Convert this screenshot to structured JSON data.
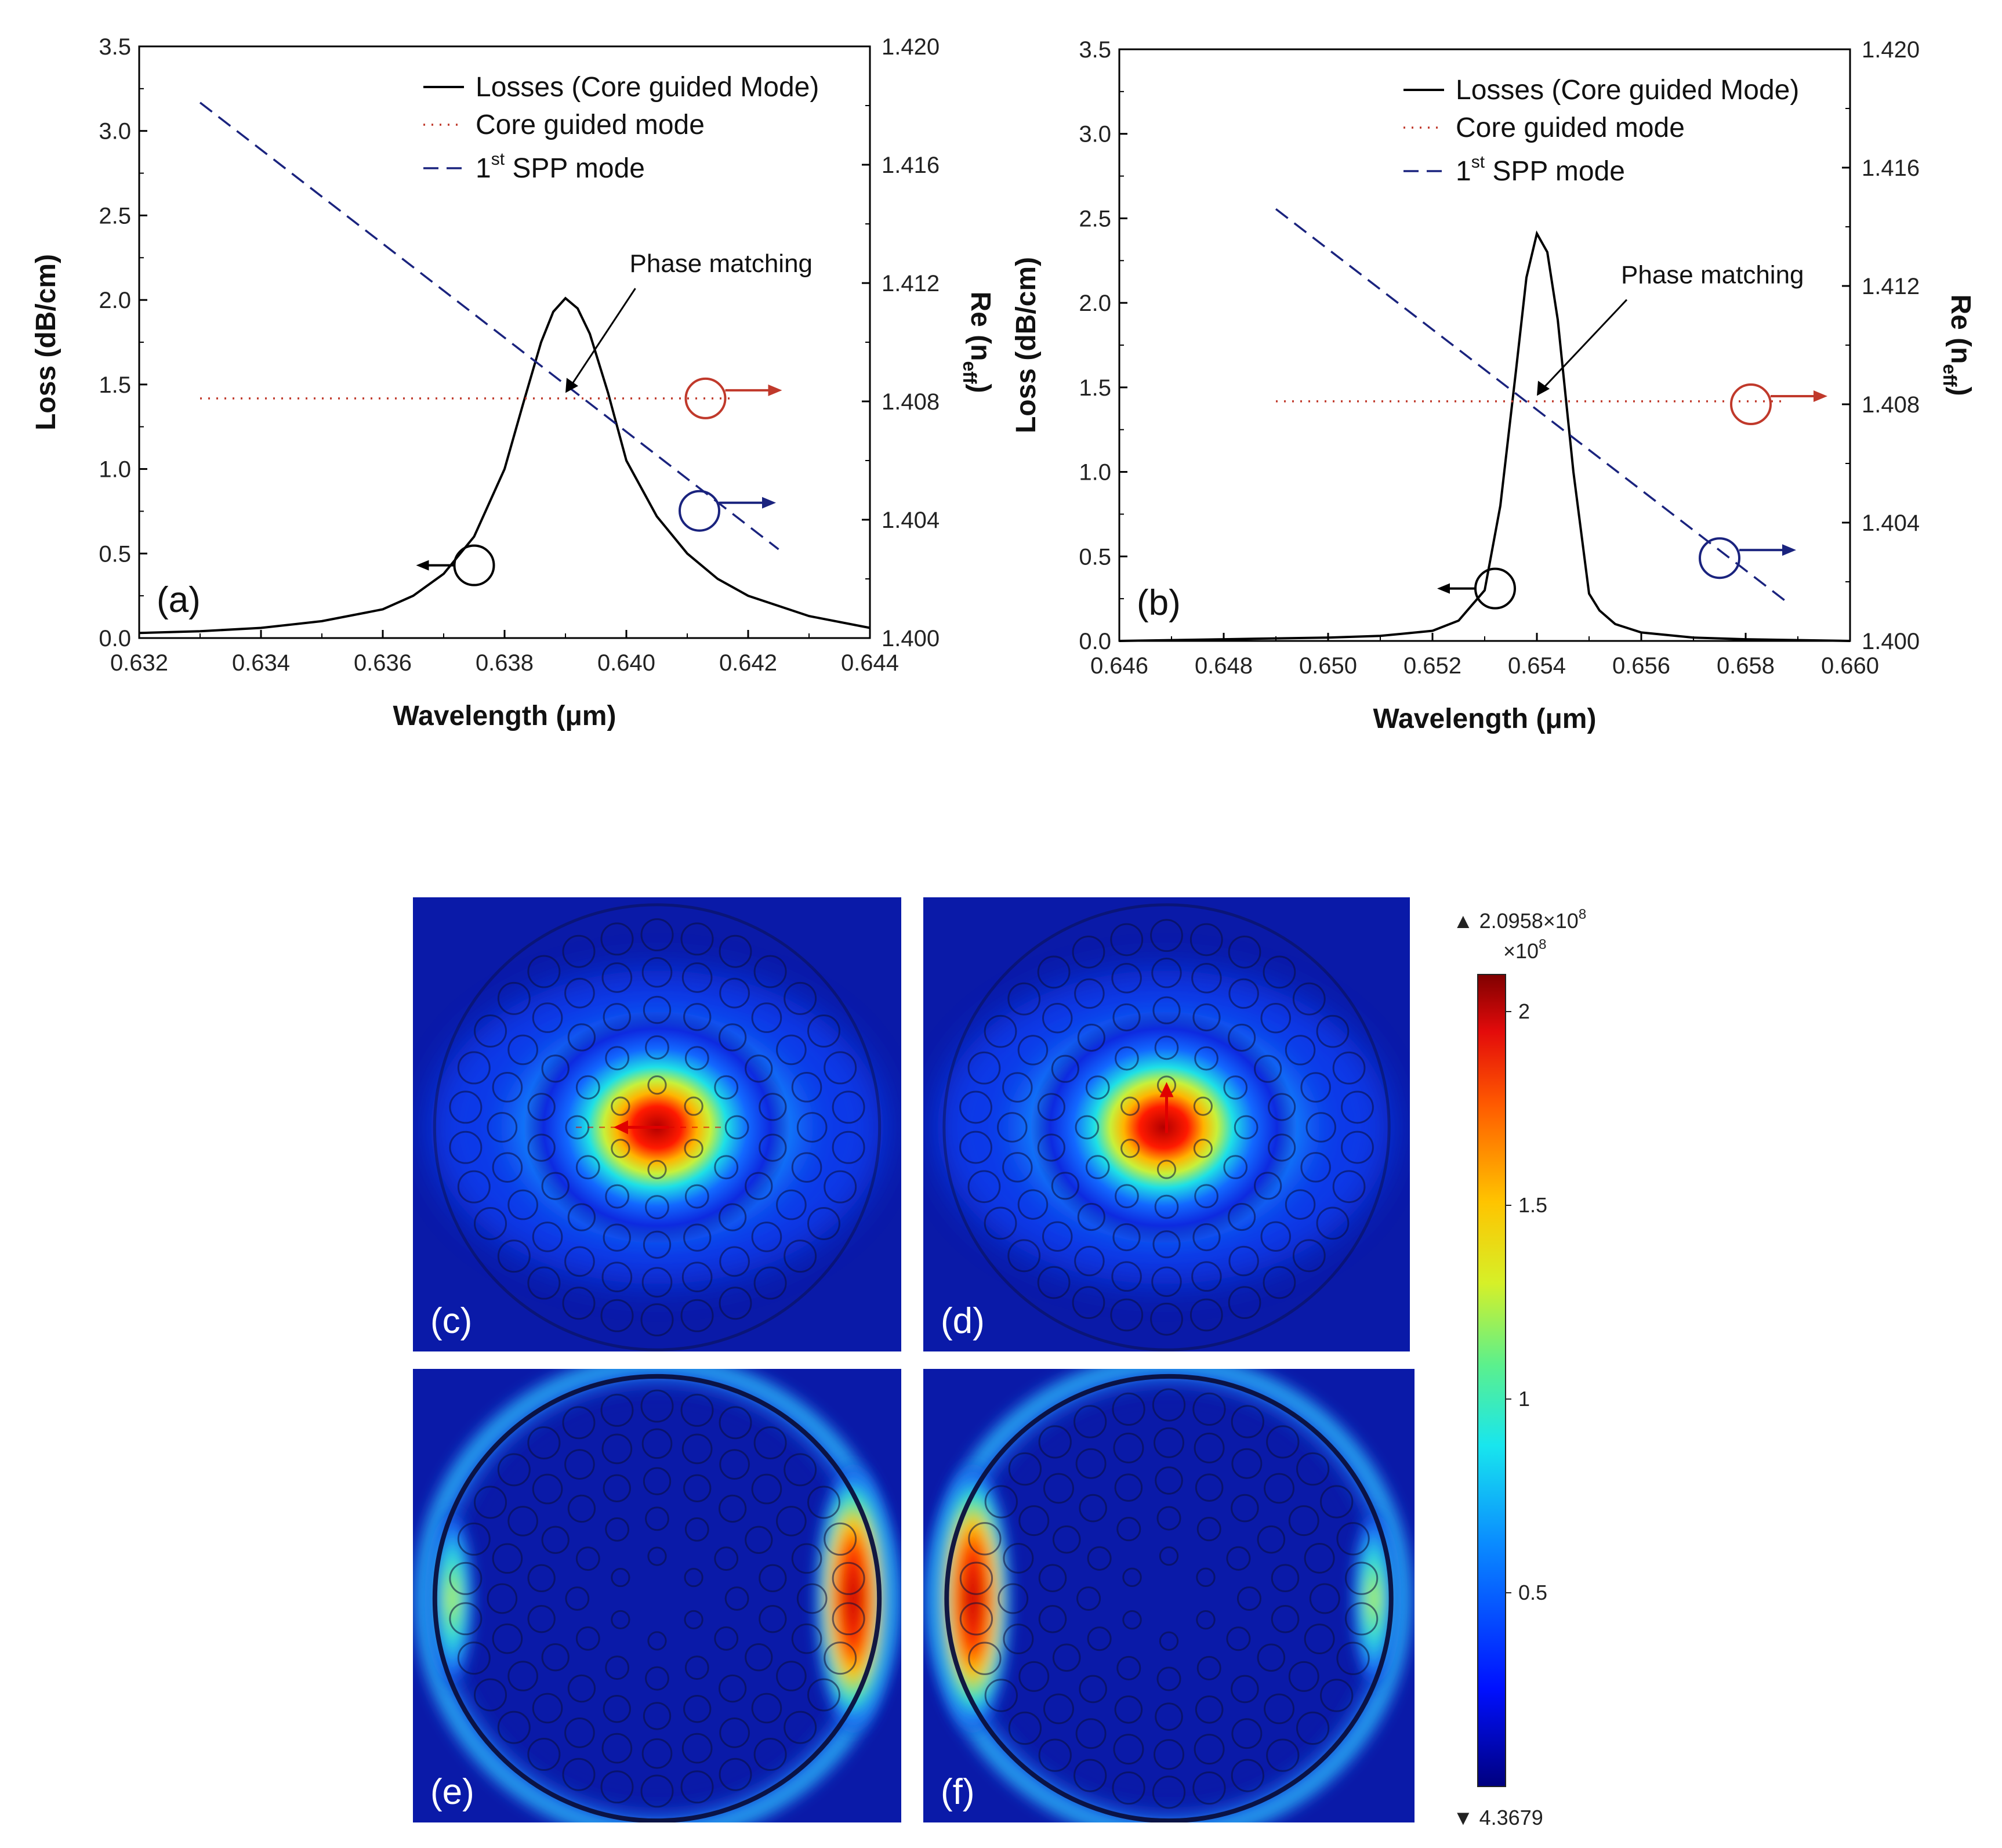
{
  "colors": {
    "loss": "#000000",
    "core": "#c0392b",
    "spp": "#1a237e",
    "field_bg": "#0a1aa8",
    "ring": "#0a0f3d"
  },
  "chart_data": [
    {
      "type": "line",
      "panel_label": "(a)",
      "xlabel": "Wavelength (μm)",
      "ylabel": "Loss (dB/cm)",
      "ylabel2": "Re (n",
      "ylabel2_sub": "eff",
      "ylabel2_close": ")",
      "xlim": [
        0.632,
        0.644
      ],
      "ylim": [
        0.0,
        3.5
      ],
      "y2lim": [
        1.4,
        1.42
      ],
      "xticks": [
        "0.632",
        "0.634",
        "0.636",
        "0.638",
        "0.640",
        "0.642",
        "0.644"
      ],
      "yticks": [
        "0.0",
        "0.5",
        "1.0",
        "1.5",
        "2.0",
        "2.5",
        "3.0",
        "3.5"
      ],
      "y2ticks": [
        "1.400",
        "1.404",
        "1.408",
        "1.412",
        "1.416",
        "1.420"
      ],
      "legend": {
        "position": "top-right",
        "loss": "Losses (Core guided Mode)",
        "core": "Core guided mode",
        "spp_prefix": "1",
        "spp_sup": "st",
        "spp_suffix": " SPP mode"
      },
      "annotation": "Phase matching",
      "series": [
        {
          "name": "Losses (Core guided Mode)",
          "axis": "left",
          "style": "solid",
          "x": [
            0.632,
            0.633,
            0.634,
            0.635,
            0.636,
            0.6365,
            0.637,
            0.6375,
            0.638,
            0.6383,
            0.6386,
            0.6388,
            0.639,
            0.6392,
            0.6394,
            0.6397,
            0.64,
            0.6405,
            0.641,
            0.6415,
            0.642,
            0.643,
            0.644
          ],
          "y": [
            0.03,
            0.04,
            0.06,
            0.1,
            0.17,
            0.25,
            0.38,
            0.6,
            1.0,
            1.38,
            1.75,
            1.93,
            2.01,
            1.95,
            1.8,
            1.45,
            1.05,
            0.72,
            0.5,
            0.35,
            0.25,
            0.13,
            0.06
          ]
        },
        {
          "name": "Core guided mode",
          "axis": "right",
          "style": "dotted",
          "x": [
            0.633,
            0.6418
          ],
          "y": [
            1.4081,
            1.4081
          ]
        },
        {
          "name": "1st SPP mode",
          "axis": "right",
          "style": "dashed",
          "x": [
            0.633,
            0.6425
          ],
          "y": [
            1.4181,
            1.403
          ]
        }
      ],
      "markers": [
        {
          "axis": "left",
          "x": 0.6375,
          "y": 0.43,
          "dir": "left"
        },
        {
          "axis": "right",
          "x": 0.6413,
          "y": 1.4081,
          "dir": "right"
        },
        {
          "axis": "right",
          "x": 0.6412,
          "y": 1.4043,
          "dir": "right"
        }
      ],
      "arrow": {
        "from": [
          0.6391,
          2.0
        ],
        "to": [
          0.639,
          1.45
        ]
      }
    },
    {
      "type": "line",
      "panel_label": "(b)",
      "xlabel": "Wavelength (μm)",
      "ylabel": "Loss (dB/cm)",
      "ylabel2": "Re (n",
      "ylabel2_sub": "eff",
      "ylabel2_close": ")",
      "xlim": [
        0.646,
        0.66
      ],
      "ylim": [
        0.0,
        3.5
      ],
      "y2lim": [
        1.4,
        1.42
      ],
      "xticks": [
        "0.646",
        "0.648",
        "0.650",
        "0.652",
        "0.654",
        "0.656",
        "0.658",
        "0.660"
      ],
      "yticks": [
        "0.0",
        "0.5",
        "1.0",
        "1.5",
        "2.0",
        "2.5",
        "3.0",
        "3.5"
      ],
      "y2ticks": [
        "1.400",
        "1.404",
        "1.408",
        "1.412",
        "1.416",
        "1.420"
      ],
      "legend": {
        "position": "top-right",
        "loss": "Losses (Core guided Mode)",
        "core": "Core guided mode",
        "spp_prefix": "1",
        "spp_sup": "st",
        "spp_suffix": " SPP mode"
      },
      "annotation": "Phase matching",
      "series": [
        {
          "name": "Losses (Core guided Mode)",
          "axis": "left",
          "style": "solid",
          "x": [
            0.646,
            0.648,
            0.65,
            0.651,
            0.652,
            0.6525,
            0.653,
            0.6533,
            0.6536,
            0.6538,
            0.654,
            0.6542,
            0.6544,
            0.6547,
            0.655,
            0.6552,
            0.6555,
            0.656,
            0.657,
            0.658,
            0.66
          ],
          "y": [
            0.0,
            0.01,
            0.02,
            0.03,
            0.06,
            0.12,
            0.3,
            0.8,
            1.6,
            2.15,
            2.41,
            2.3,
            1.9,
            1.0,
            0.28,
            0.18,
            0.1,
            0.05,
            0.02,
            0.01,
            0.0
          ]
        },
        {
          "name": "Core guided mode",
          "axis": "right",
          "style": "dotted",
          "x": [
            0.649,
            0.6588
          ],
          "y": [
            1.4081,
            1.4081
          ]
        },
        {
          "name": "1st SPP mode",
          "axis": "right",
          "style": "dashed",
          "x": [
            0.649,
            0.6588
          ],
          "y": [
            1.4146,
            1.4013
          ]
        }
      ],
      "markers": [
        {
          "axis": "left",
          "x": 0.6532,
          "y": 0.31,
          "dir": "left"
        },
        {
          "axis": "right",
          "x": 0.6581,
          "y": 1.408,
          "dir": "right"
        },
        {
          "axis": "right",
          "x": 0.6575,
          "y": 1.4028,
          "dir": "right"
        }
      ],
      "arrow": {
        "from": [
          0.6545,
          1.95
        ],
        "to": [
          0.654,
          1.45
        ]
      }
    }
  ],
  "field_plots": {
    "labels": [
      "(c)",
      "(d)",
      "(e)",
      "(f)"
    ]
  },
  "colorbar": {
    "max_label": "▲ 2.0958×10",
    "max_exp": "8",
    "scale_label": "×10",
    "scale_exp": "8",
    "min_label": "▼ 4.3679",
    "min": 0.0,
    "max": 2.0958,
    "ticks": [
      "2",
      "1.5",
      "1",
      "0.5"
    ],
    "tick_values": [
      2.0,
      1.5,
      1.0,
      0.5
    ]
  }
}
